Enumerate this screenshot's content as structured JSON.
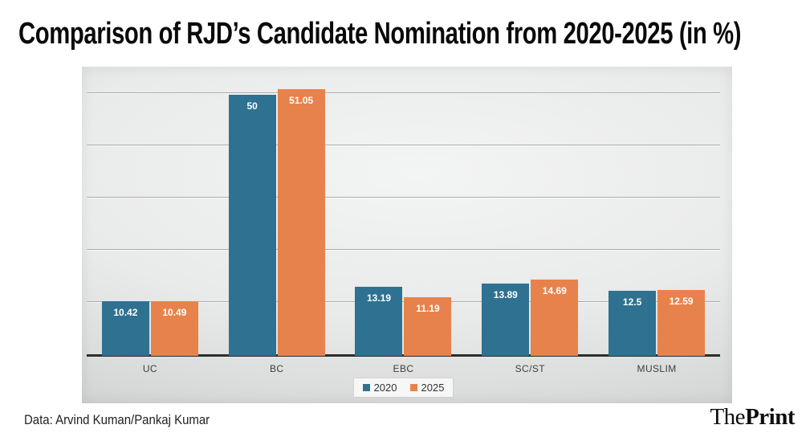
{
  "page": {
    "title": "Comparison of RJD’s Candidate Nomination from 2020-2025 (in %)",
    "credit": "Data: Arvind Kuman/Pankaj Kumar",
    "logo": {
      "regular": "The",
      "bold": "Print"
    }
  },
  "chart_data": {
    "type": "bar",
    "title": "Comparison of RJD’s Candidate Nomination from 2020-2025 (in %)",
    "categories": [
      "UC",
      "BC",
      "EBC",
      "SC/ST",
      "MUSLIM"
    ],
    "series": [
      {
        "name": "2020",
        "color": "#2e7191",
        "values": [
          10.42,
          50,
          13.19,
          13.89,
          12.5
        ]
      },
      {
        "name": "2025",
        "color": "#e8824c",
        "values": [
          10.49,
          51.05,
          11.19,
          14.69,
          12.59
        ]
      }
    ],
    "xlabel": "",
    "ylabel": "",
    "ylim": [
      0,
      55.4
    ],
    "gridline_values": [
      10,
      20,
      30,
      40,
      50
    ],
    "grid": true,
    "y_axis_tick_labels_visible": false,
    "value_labels": "inside-top",
    "legend_position": "bottom-center",
    "colors": {
      "axis": "#2d2d2d",
      "gridline": "#aaabab",
      "category_text": "#3e3e3e",
      "value_text": "#ffffff",
      "legend_bg": "#f7f7f7"
    }
  }
}
